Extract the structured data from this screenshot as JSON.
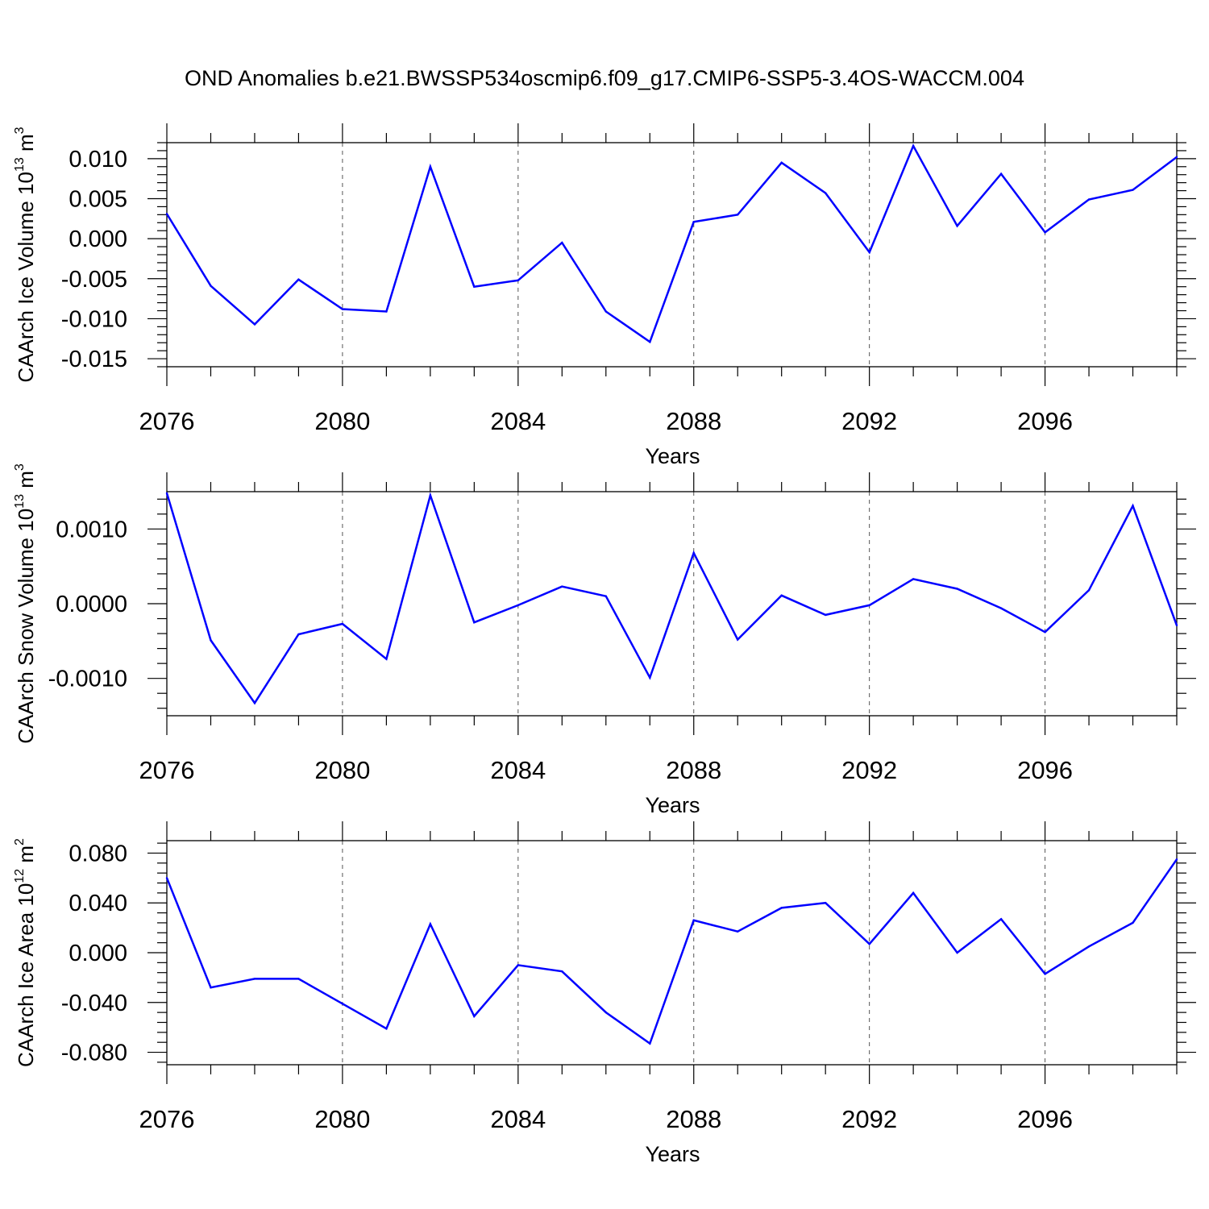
{
  "title": "OND Anomalies b.e21.BWSSP534oscmip6.f09_g17.CMIP6-SSP5-3.4OS-WACCM.004",
  "chart_data": [
    {
      "type": "line",
      "ylabel": {
        "base": "CAArch Ice Volume 10",
        "exp": "13",
        "unit": " m",
        "unit_exp": "3"
      },
      "xlabel": "Years",
      "xlim": [
        2076,
        2099
      ],
      "ylim": [
        -0.016,
        0.012
      ],
      "xticks": [
        2076,
        2080,
        2084,
        2088,
        2092,
        2096
      ],
      "xtick_labels": [
        "2076",
        "2080",
        "2084",
        "2088",
        "2092",
        "2096"
      ],
      "yticks": [
        0.01,
        0.005,
        0.0,
        -0.005,
        -0.01,
        -0.015
      ],
      "ytick_labels": [
        "0.010",
        "0.005",
        "0.000",
        "-0.005",
        "-0.010",
        "-0.015"
      ],
      "grid": "vertical-dashed",
      "color": "#0000ff",
      "x": [
        2076,
        2077,
        2078,
        2079,
        2080,
        2081,
        2082,
        2083,
        2084,
        2085,
        2086,
        2087,
        2088,
        2089,
        2090,
        2091,
        2092,
        2093,
        2094,
        2095,
        2096,
        2097,
        2098,
        2099
      ],
      "values": [
        0.0031,
        -0.0059,
        -0.0107,
        -0.0051,
        -0.0088,
        -0.0091,
        0.009,
        -0.006,
        -0.0052,
        -0.0005,
        -0.0091,
        -0.0129,
        0.0021,
        0.003,
        0.0095,
        0.0057,
        -0.0017,
        0.0116,
        0.0016,
        0.0081,
        0.0008,
        0.0049,
        0.0061,
        0.0102
      ]
    },
    {
      "type": "line",
      "ylabel": {
        "base": "CAArch Snow Volume 10",
        "exp": "13",
        "unit": " m",
        "unit_exp": "3"
      },
      "xlabel": "Years",
      "xlim": [
        2076,
        2099
      ],
      "ylim": [
        -0.0015,
        0.0015
      ],
      "xticks": [
        2076,
        2080,
        2084,
        2088,
        2092,
        2096
      ],
      "xtick_labels": [
        "2076",
        "2080",
        "2084",
        "2088",
        "2092",
        "2096"
      ],
      "yticks": [
        0.001,
        0.0,
        -0.001
      ],
      "ytick_labels": [
        "0.0010",
        "0.0000",
        "-0.0010"
      ],
      "grid": "vertical-dashed",
      "color": "#0000ff",
      "x": [
        2076,
        2077,
        2078,
        2079,
        2080,
        2081,
        2082,
        2083,
        2084,
        2085,
        2086,
        2087,
        2088,
        2089,
        2090,
        2091,
        2092,
        2093,
        2094,
        2095,
        2096,
        2097,
        2098,
        2099
      ],
      "values": [
        0.00148,
        -0.00049,
        -0.00133,
        -0.00041,
        -0.00027,
        -0.00074,
        0.00145,
        -0.00025,
        -2e-05,
        0.00023,
        0.0001,
        -0.00099,
        0.00068,
        -0.00048,
        0.00011,
        -0.00015,
        -2e-05,
        0.00033,
        0.0002,
        -6e-05,
        -0.00038,
        0.00018,
        0.00131,
        -0.00029
      ]
    },
    {
      "type": "line",
      "ylabel": {
        "base": "CAArch Ice Area 10",
        "exp": "12",
        "unit": " m",
        "unit_exp": "2"
      },
      "xlabel": "Years",
      "xlim": [
        2076,
        2099
      ],
      "ylim": [
        -0.09,
        0.09
      ],
      "xticks": [
        2076,
        2080,
        2084,
        2088,
        2092,
        2096
      ],
      "xtick_labels": [
        "2076",
        "2080",
        "2084",
        "2088",
        "2092",
        "2096"
      ],
      "yticks": [
        0.08,
        0.04,
        0.0,
        -0.04,
        -0.08
      ],
      "ytick_labels": [
        "0.080",
        "0.040",
        "0.000",
        "-0.040",
        "-0.080"
      ],
      "grid": "vertical-dashed",
      "color": "#0000ff",
      "x": [
        2076,
        2077,
        2078,
        2079,
        2080,
        2081,
        2082,
        2083,
        2084,
        2085,
        2086,
        2087,
        2088,
        2089,
        2090,
        2091,
        2092,
        2093,
        2094,
        2095,
        2096,
        2097,
        2098,
        2099
      ],
      "values": [
        0.06,
        -0.028,
        -0.021,
        -0.021,
        -0.041,
        -0.061,
        0.023,
        -0.051,
        -0.01,
        -0.015,
        -0.048,
        -0.073,
        0.026,
        0.017,
        0.036,
        0.04,
        0.007,
        0.048,
        0.0,
        0.027,
        -0.017,
        0.005,
        0.024,
        0.075
      ]
    }
  ]
}
